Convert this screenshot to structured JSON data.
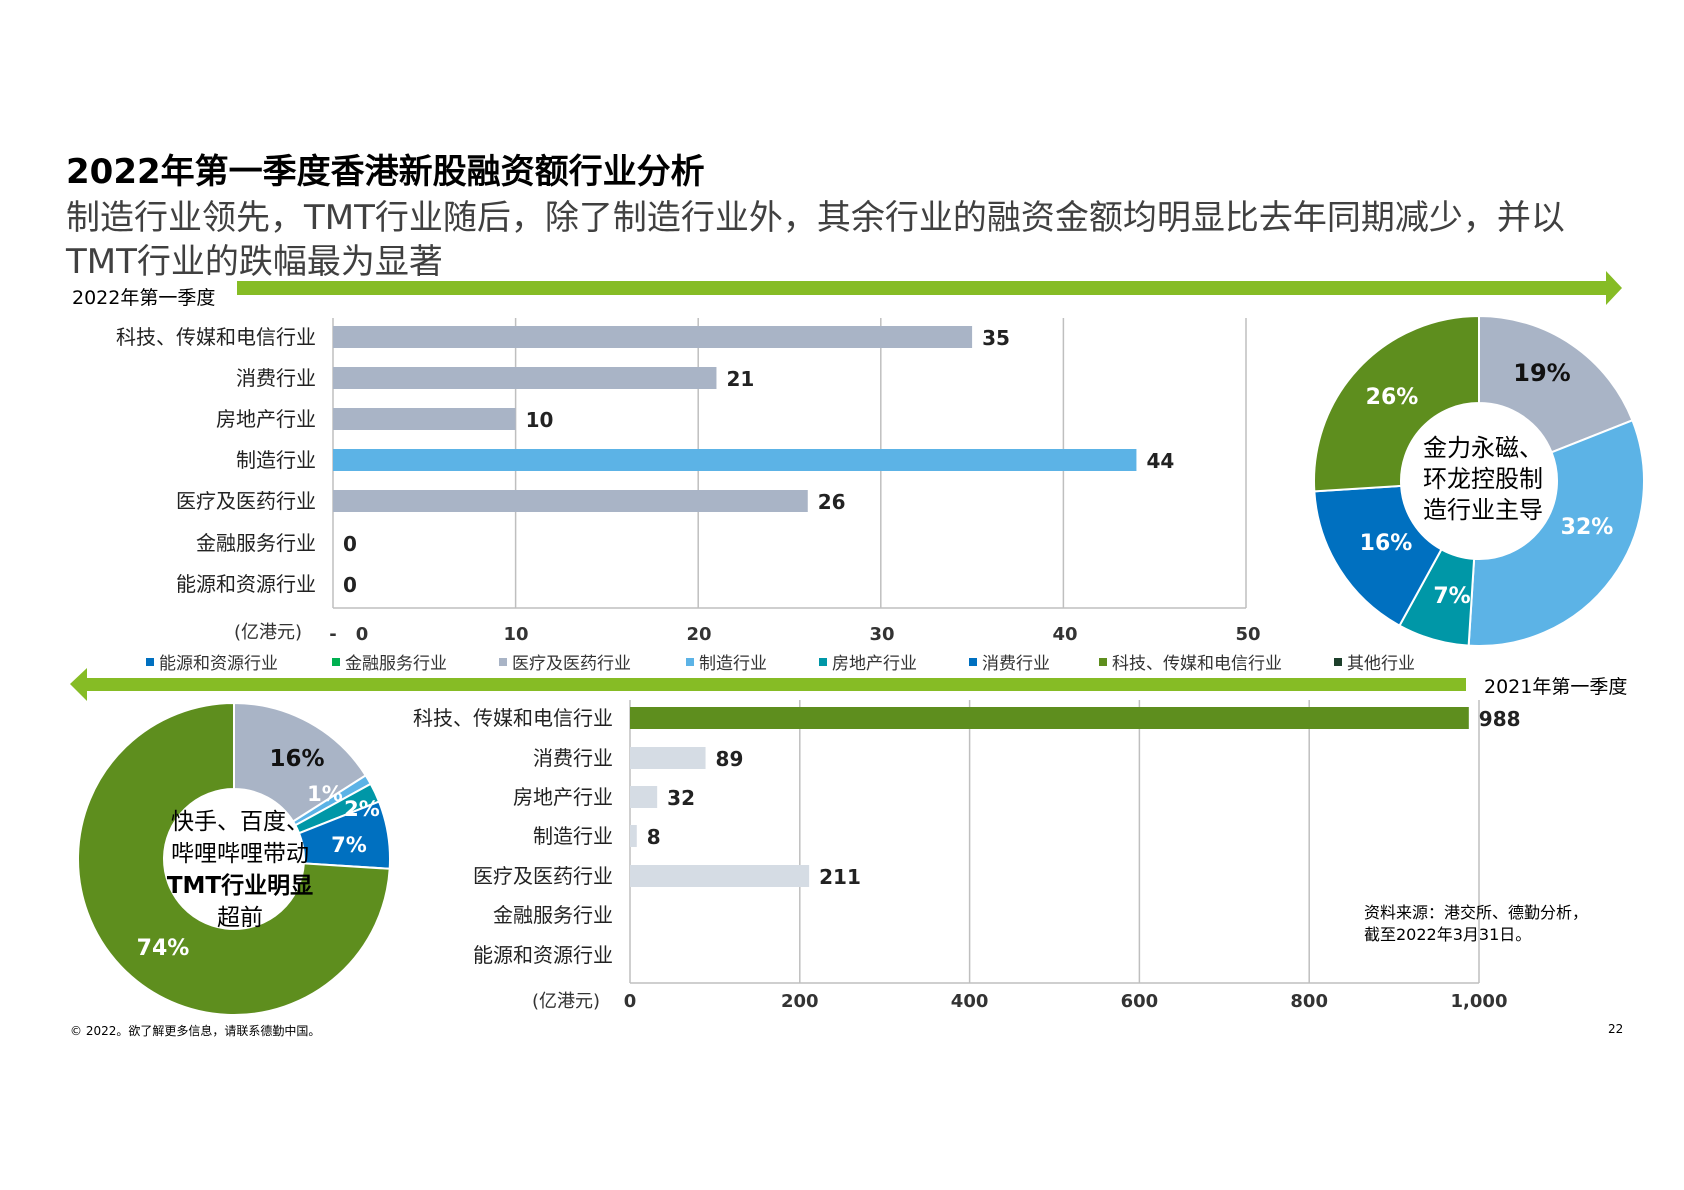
{
  "header": {
    "title": "2022年第一季度香港新股融资额行业分析",
    "subtitle_line1": "制造行业领先，TMT行业随后，除了制造行业外，其余行业的融资金额均明显比去年同期减少，并以",
    "subtitle_line2": "TMT行业的跌幅最为显著"
  },
  "periods": {
    "top": "2022年第一季度",
    "bottom": "2021年第一季度"
  },
  "legend": [
    {
      "label": "能源和资源行业",
      "color": "#0070C0"
    },
    {
      "label": "金融服务行业",
      "color": "#00B050"
    },
    {
      "label": "医疗及医药行业",
      "color": "#A9B4C6"
    },
    {
      "label": "制造行业",
      "color": "#5CB3E6"
    },
    {
      "label": "房地产行业",
      "color": "#0097A7"
    },
    {
      "label": "消费行业",
      "color": "#0070C0"
    },
    {
      "label": "科技、传媒和电信行业",
      "color": "#5E8E1E"
    },
    {
      "label": "其他行业",
      "color": "#1D3F2B"
    }
  ],
  "colors": {
    "arrow": "#86BC25",
    "grey_bar": "#A9B4C6",
    "light_bar": "#D5DCE4",
    "blue_bar": "#5CB3E6",
    "green_bar": "#5E8E1E"
  },
  "chart_data": [
    {
      "type": "bar",
      "orientation": "horizontal",
      "period": "2022年第一季度",
      "categories": [
        "科技、传媒和电信行业",
        "消费行业",
        "房地产行业",
        "制造行业",
        "医疗及医药行业",
        "金融服务行业",
        "能源和资源行业"
      ],
      "values": [
        35,
        21,
        10,
        44,
        26,
        0,
        0
      ],
      "value_labels": [
        "35",
        "21",
        "10",
        "44",
        "26",
        "0",
        "0"
      ],
      "xlabel": "(亿港元)",
      "xlim": [
        0,
        50
      ],
      "xticks": [
        "-",
        "0",
        "10",
        "20",
        "30",
        "40",
        "50"
      ],
      "grid": true
    },
    {
      "type": "bar",
      "orientation": "horizontal",
      "period": "2021年第一季度",
      "categories": [
        "科技、传媒和电信行业",
        "消费行业",
        "房地产行业",
        "制造行业",
        "医疗及医药行业",
        "金融服务行业",
        "能源和资源行业"
      ],
      "values": [
        988,
        89,
        32,
        8,
        211,
        null,
        null
      ],
      "value_labels": [
        "988",
        "89",
        "32",
        "8",
        "211",
        "",
        ""
      ],
      "xlabel": "(亿港元)",
      "xlim": [
        0,
        1000
      ],
      "xticks": [
        "0",
        "200",
        "400",
        "600",
        "800",
        "1,000"
      ],
      "grid": true
    },
    {
      "type": "pie",
      "donut": true,
      "period": "2022年第一季度",
      "center_text": [
        "金力永磁、",
        "环龙控股制",
        "造行业主导"
      ],
      "labels": [
        "19%",
        "32%",
        "7%",
        "16%",
        "26%"
      ],
      "values": [
        19,
        32,
        7,
        16,
        26
      ],
      "colors": [
        "#A9B4C6",
        "#5CB3E6",
        "#0097A7",
        "#0070C0",
        "#5E8E1E"
      ]
    },
    {
      "type": "pie",
      "donut": true,
      "period": "2021年第一季度",
      "center_text": [
        "快手、百度、",
        "哔哩哔哩带动",
        "TMT行业明显",
        "超前"
      ],
      "labels": [
        "16%",
        "1%",
        "2%",
        "7%",
        "74%"
      ],
      "values": [
        16,
        1,
        2,
        7,
        74
      ],
      "colors": [
        "#A9B4C6",
        "#5CB3E6",
        "#0097A7",
        "#0070C0",
        "#5E8E1E"
      ]
    }
  ],
  "source": {
    "line1": "资料来源：港交所、德勤分析，",
    "line2": "截至2022年3月31日。"
  },
  "footer": {
    "copyright": "© 2022。欲了解更多信息，请联系德勤中国。",
    "page_number": "22"
  }
}
